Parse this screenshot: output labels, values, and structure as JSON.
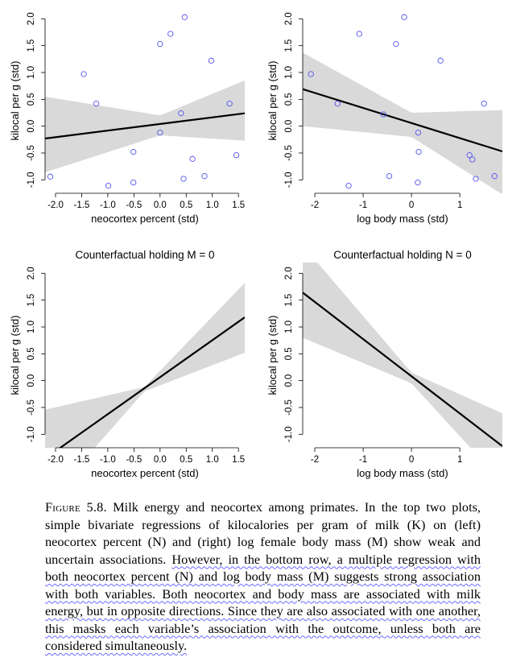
{
  "chart_data": [
    {
      "type": "scatter",
      "title": "",
      "xlabel": "neocortex percent (std)",
      "ylabel": "kilocal per g (std)",
      "xlim": [
        -2.2,
        1.62
      ],
      "ylim": [
        -1.25,
        2.2
      ],
      "xticks": [
        "-2.0",
        "-1.5",
        "-1.0",
        "-0.5",
        "0.0",
        "0.5",
        "1.0",
        "1.5"
      ],
      "yticks": [
        "-1.0",
        "-0.5",
        "0.0",
        "0.5",
        "1.0",
        "1.5",
        "2.0"
      ],
      "points": [
        {
          "x": -2.1,
          "y": -0.94
        },
        {
          "x": -1.46,
          "y": 0.97
        },
        {
          "x": -1.22,
          "y": 0.42
        },
        {
          "x": -0.99,
          "y": -1.11
        },
        {
          "x": -0.51,
          "y": -0.48
        },
        {
          "x": -0.51,
          "y": -1.05
        },
        {
          "x": 0.0,
          "y": 1.53
        },
        {
          "x": 0.0,
          "y": -0.12
        },
        {
          "x": 0.2,
          "y": 1.72
        },
        {
          "x": 0.4,
          "y": 0.24
        },
        {
          "x": 0.47,
          "y": 2.03
        },
        {
          "x": 0.45,
          "y": -0.98
        },
        {
          "x": 0.62,
          "y": -0.61
        },
        {
          "x": 0.85,
          "y": -0.93
        },
        {
          "x": 0.98,
          "y": 1.22
        },
        {
          "x": 1.33,
          "y": 0.42
        },
        {
          "x": 1.46,
          "y": -0.54
        }
      ],
      "line": {
        "x": [
          -2.2,
          1.62
        ],
        "y": [
          -0.23,
          0.24
        ]
      },
      "band": {
        "x": [
          -2.2,
          0.0,
          1.62
        ],
        "lower": [
          -0.86,
          -0.17,
          -0.27
        ],
        "upper": [
          0.55,
          0.2,
          0.85
        ]
      },
      "colors": {
        "points": "#5555ee",
        "band": "#d9d9d9",
        "line": "#000000"
      }
    },
    {
      "type": "scatter",
      "title": "",
      "xlabel": "log body mass (std)",
      "ylabel": "kilocal per g (std)",
      "xlim": [
        -2.25,
        1.88
      ],
      "ylim": [
        -1.25,
        2.2
      ],
      "xticks": [
        "-2",
        "-1",
        "0",
        "1"
      ],
      "yticks": [
        "-1.0",
        "-0.5",
        "0.0",
        "0.5",
        "1.0",
        "1.5",
        "2.0"
      ],
      "points": [
        {
          "x": -2.08,
          "y": 0.97
        },
        {
          "x": -1.53,
          "y": 0.42
        },
        {
          "x": -1.3,
          "y": -1.11
        },
        {
          "x": -1.08,
          "y": 1.72
        },
        {
          "x": -0.58,
          "y": 0.22
        },
        {
          "x": -0.46,
          "y": -0.93
        },
        {
          "x": -0.32,
          "y": 1.53
        },
        {
          "x": -0.15,
          "y": 2.03
        },
        {
          "x": 0.14,
          "y": -0.12
        },
        {
          "x": 0.15,
          "y": -0.48
        },
        {
          "x": 0.13,
          "y": -1.05
        },
        {
          "x": 0.6,
          "y": 1.22
        },
        {
          "x": 1.2,
          "y": -0.54
        },
        {
          "x": 1.26,
          "y": -0.62
        },
        {
          "x": 1.33,
          "y": -0.98
        },
        {
          "x": 1.5,
          "y": 0.42
        },
        {
          "x": 1.72,
          "y": -0.93
        }
      ],
      "line": {
        "x": [
          -2.25,
          1.88
        ],
        "y": [
          0.69,
          -0.47
        ]
      },
      "band": {
        "x": [
          -2.25,
          0.0,
          1.88
        ],
        "lower": [
          0.0,
          -0.2,
          -1.27
        ],
        "upper": [
          1.37,
          0.25,
          0.3
        ]
      },
      "colors": {
        "points": "#5555ee",
        "band": "#d9d9d9",
        "line": "#000000"
      }
    },
    {
      "type": "line",
      "title": "Counterfactual holding M = 0",
      "xlabel": "neocortex percent (std)",
      "ylabel": "kilocal per g (std)",
      "xlim": [
        -2.2,
        1.62
      ],
      "ylim": [
        -1.25,
        2.2
      ],
      "xticks": [
        "-2.0",
        "-1.5",
        "-1.0",
        "-0.5",
        "0.0",
        "0.5",
        "1.0",
        "1.5"
      ],
      "yticks": [
        "-1.0",
        "-0.5",
        "0.0",
        "0.5",
        "1.0",
        "1.5",
        "2.0"
      ],
      "line": {
        "x": [
          -2.2,
          1.62
        ],
        "y": [
          -1.45,
          1.18
        ]
      },
      "band": {
        "x": [
          -2.2,
          -0.3,
          1.62
        ],
        "lower": [
          -2.3,
          -0.2,
          0.52
        ],
        "upper": [
          -0.54,
          -0.12,
          1.82
        ]
      },
      "colors": {
        "band": "#d9d9d9",
        "line": "#000000"
      }
    },
    {
      "type": "line",
      "title": "Counterfactual holding N = 0",
      "xlabel": "log body mass (std)",
      "ylabel": "kilocal per g (std)",
      "xlim": [
        -2.25,
        1.88
      ],
      "ylim": [
        -1.25,
        2.2
      ],
      "xticks": [
        "-2",
        "-1",
        "0",
        "1"
      ],
      "yticks": [
        "-1.0",
        "-0.5",
        "0.0",
        "0.5",
        "1.0",
        "1.5",
        "2.0"
      ],
      "line": {
        "x": [
          -2.25,
          1.88
        ],
        "y": [
          1.64,
          -1.22
        ]
      },
      "band": {
        "x": [
          -2.25,
          0.0,
          1.88
        ],
        "lower": [
          0.8,
          -0.05,
          -1.9
        ],
        "upper": [
          2.52,
          0.15,
          -0.61
        ]
      },
      "colors": {
        "band": "#d9d9d9",
        "line": "#000000"
      }
    }
  ],
  "caption": {
    "label": "Figure 5.8.",
    "lead": " Milk energy and neocortex among primates. In the top two plots, simple bivariate regressions of kilocalories per gram of milk (K) on (left) neocortex percent (N) and (right) log female body mass (M) show weak and uncertain associations. ",
    "underlined": "However, in the bottom row, a multiple regression with both neocortex percent (N) and log body mass (M) suggests strong association with both variables. Both neocortex and body mass are associated with milk energy, but in opposite directions. Since they are also associated with one another, this masks each variable’s association with the outcome, unless both are considered simultaneously."
  }
}
